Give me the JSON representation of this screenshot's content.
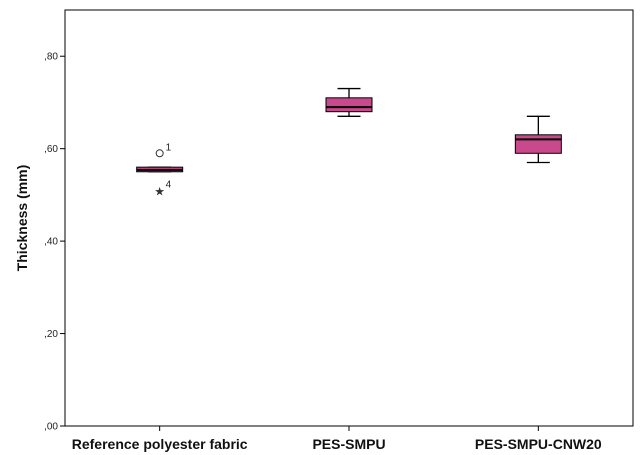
{
  "chart_data": {
    "type": "boxplot",
    "ylabel": "Thickness (mm)",
    "ylim": [
      0,
      0.9
    ],
    "yticks": [
      {
        "value": 0.0,
        "label": ",00"
      },
      {
        "value": 0.2,
        "label": ",20"
      },
      {
        "value": 0.4,
        "label": ",40"
      },
      {
        "value": 0.6,
        "label": ",60"
      },
      {
        "value": 0.8,
        "label": ",80"
      }
    ],
    "categories": [
      "Reference polyester fabric",
      "PES-SMPU",
      "PES-SMPU-CNW20"
    ],
    "box_color": "#c94a8c",
    "median_color": "#000000",
    "boxes": [
      {
        "category": "Reference polyester fabric",
        "min": 0.55,
        "q1": 0.55,
        "median": 0.554,
        "q3": 0.56,
        "max": 0.56,
        "outliers": [
          {
            "value": 0.59,
            "marker": "circle",
            "label": "1"
          },
          {
            "value": 0.51,
            "marker": "star",
            "label": "4"
          }
        ]
      },
      {
        "category": "PES-SMPU",
        "min": 0.67,
        "q1": 0.68,
        "median": 0.69,
        "q3": 0.71,
        "max": 0.73,
        "outliers": []
      },
      {
        "category": "PES-SMPU-CNW20",
        "min": 0.57,
        "q1": 0.59,
        "median": 0.62,
        "q3": 0.63,
        "max": 0.67,
        "outliers": []
      }
    ]
  }
}
